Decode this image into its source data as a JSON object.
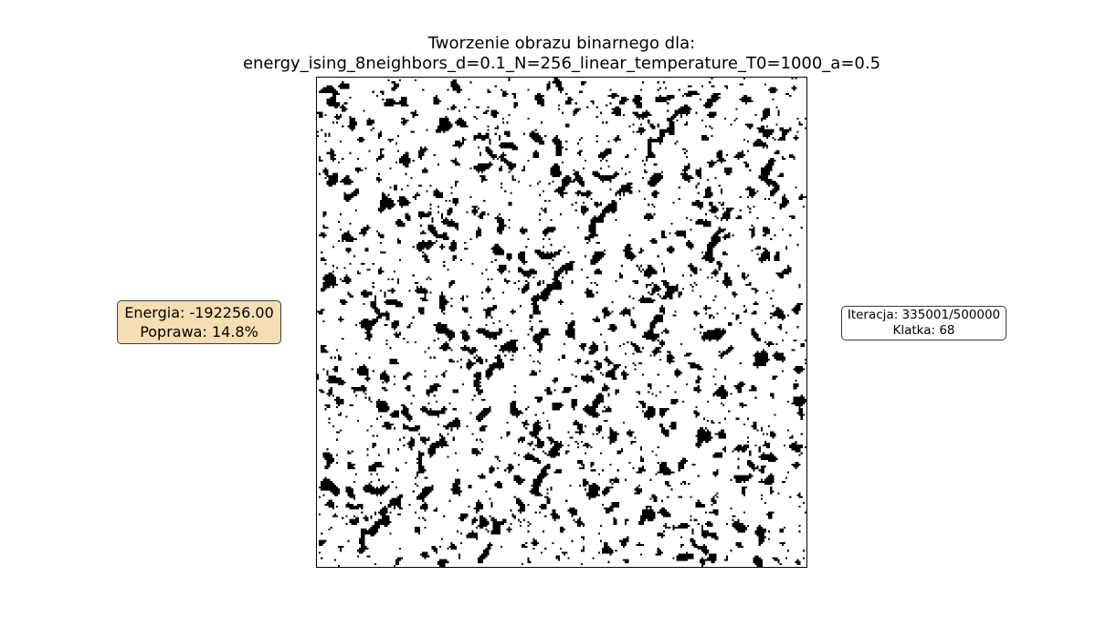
{
  "figure": {
    "title_line_1": "Tworzenie obrazu binarnego dla:",
    "title_line_2": "energy_ising_8neighbors_d=0.1_N=256_linear_temperature_T0=1000_a=0.5"
  },
  "energy_box": {
    "energy_text": "Energia: -192256.00",
    "improvement_text": "Poprawa: 14.8%",
    "background_color": "#f5deb3"
  },
  "iteration_box": {
    "iteration_text": "Iteracja: 335001/500000",
    "frame_text": "Klatka: 68",
    "background_color": "#ffffff"
  },
  "lattice": {
    "grid_size": 256,
    "density_of_black": 0.15,
    "spin_colors": {
      "up": "#ffffff",
      "down": "#000000"
    }
  }
}
